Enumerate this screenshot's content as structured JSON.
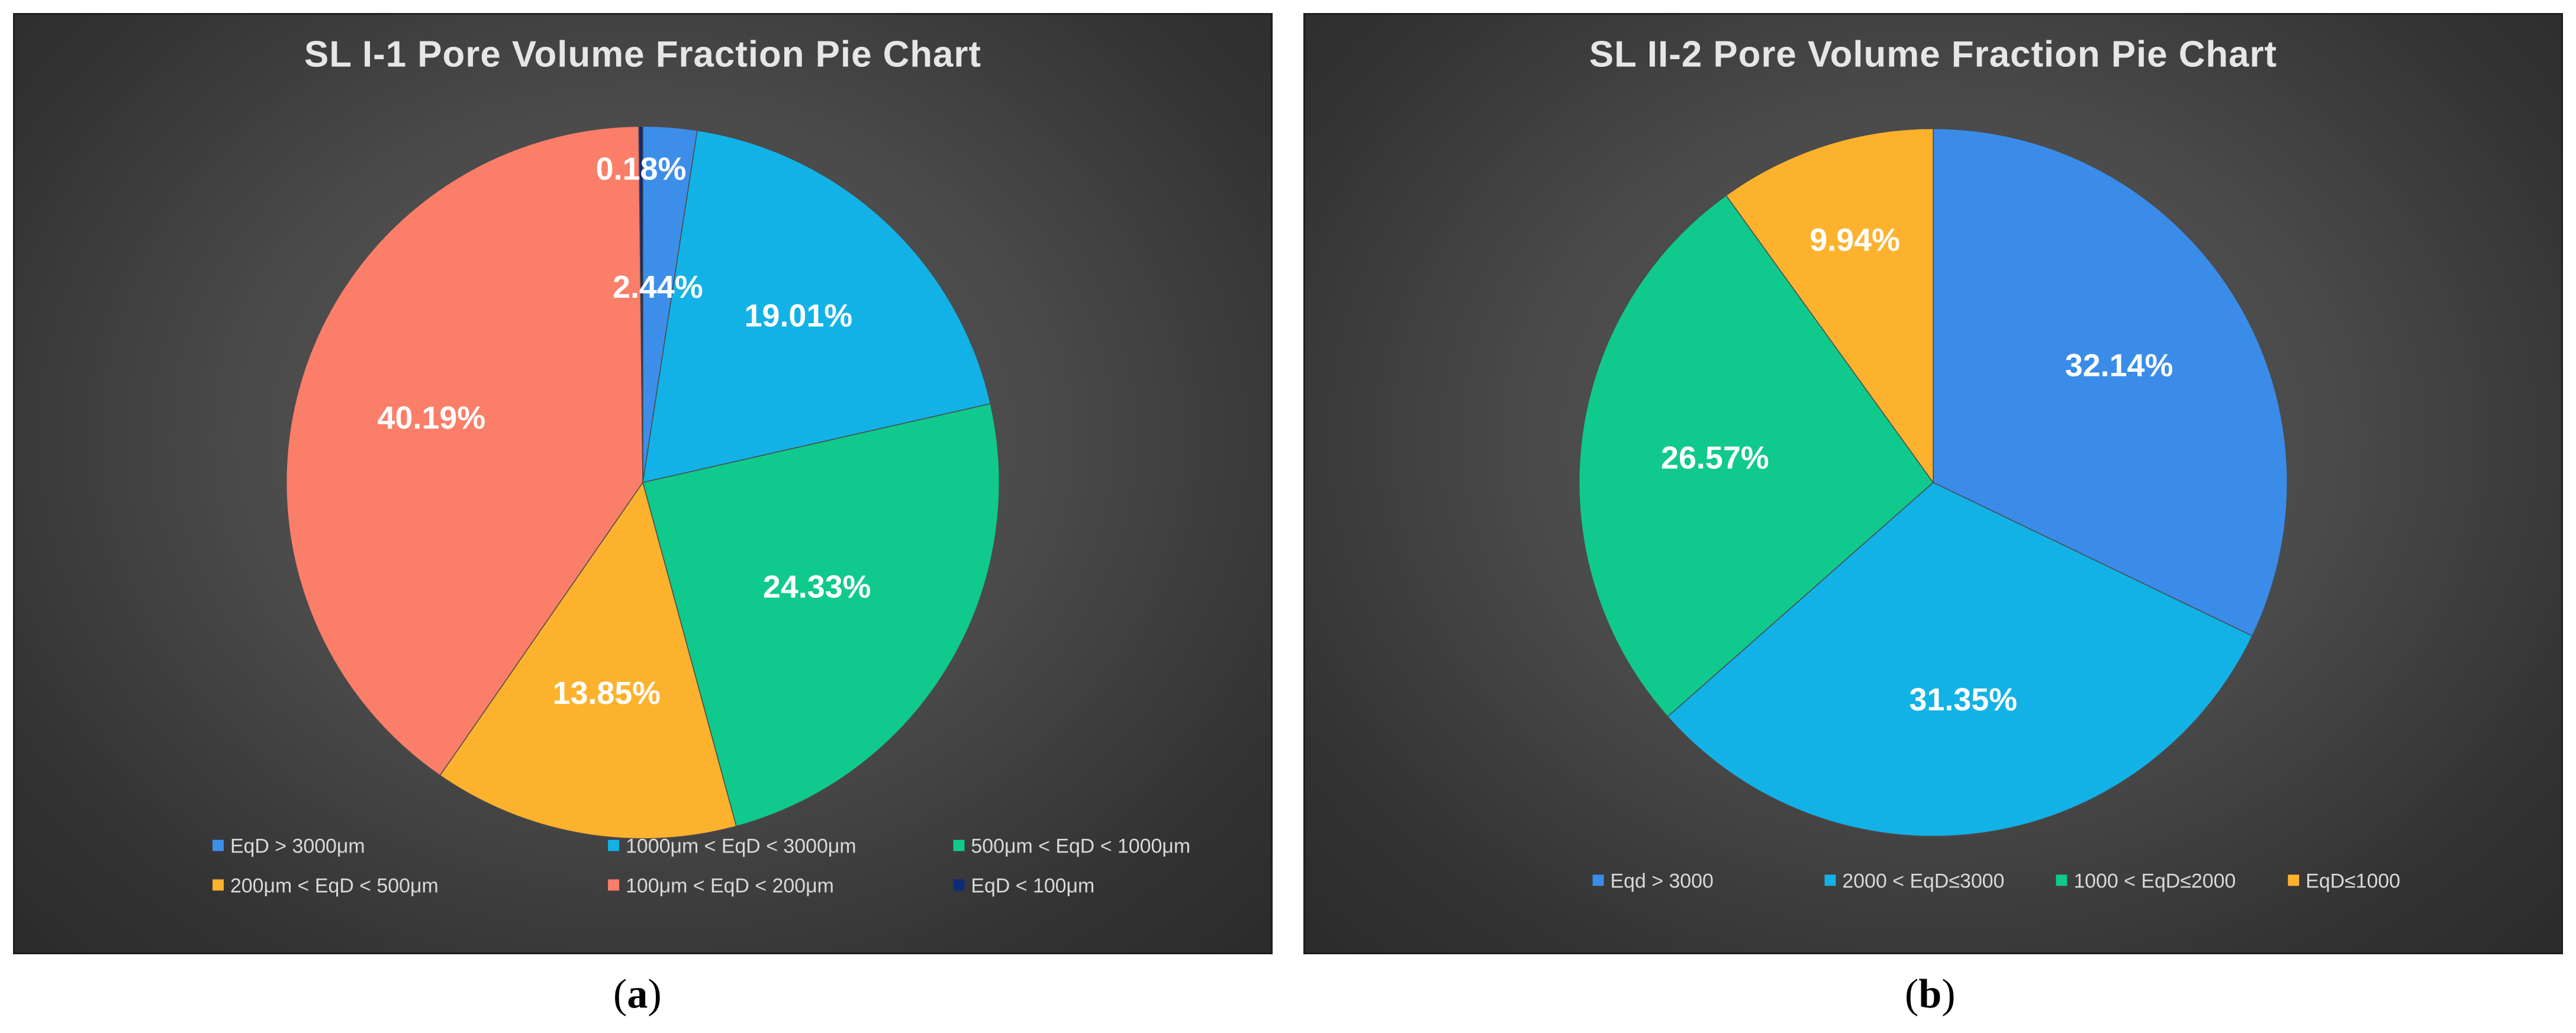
{
  "figure": {
    "caption_a": {
      "open": "(",
      "letter": "a",
      "close": ")"
    },
    "caption_b": {
      "open": "(",
      "letter": "b",
      "close": ")"
    }
  },
  "chart_data": [
    {
      "type": "pie",
      "title": "SL I-1 Pore Volume Fraction Pie Chart",
      "legend_position": "bottom",
      "slices": [
        {
          "name": "EqD > 3000μm",
          "value": 2.44,
          "label": "2.44%",
          "color": "#3d8ee8"
        },
        {
          "name": "1000μm < EqD < 3000μm",
          "value": 19.01,
          "label": "19.01%",
          "color": "#12b2e6"
        },
        {
          "name": "500μm < EqD < 1000μm",
          "value": 24.33,
          "label": "24.33%",
          "color": "#10c98c"
        },
        {
          "name": "200μm < EqD < 500μm",
          "value": 13.85,
          "label": "13.85%",
          "color": "#fdb22e"
        },
        {
          "name": "100μm < EqD < 200μm",
          "value": 40.19,
          "label": "40.19%",
          "color": "#fb7e69"
        },
        {
          "name": "EqD < 100μm",
          "value": 0.18,
          "label": "0.18%",
          "color": "#0d2c78"
        }
      ]
    },
    {
      "type": "pie",
      "title": "SL II-2 Pore Volume Fraction Pie Chart",
      "legend_position": "bottom",
      "slices": [
        {
          "name": "Eqd > 3000",
          "value": 32.14,
          "label": "32.14%",
          "color": "#3a8ce8"
        },
        {
          "name": "2000 < EqD≤3000",
          "value": 31.35,
          "label": "31.35%",
          "color": "#12b2e6"
        },
        {
          "name": "1000 < EqD≤2000",
          "value": 26.57,
          "label": "26.57%",
          "color": "#10c98c"
        },
        {
          "name": "EqD≤1000",
          "value": 9.94,
          "label": "9.94%",
          "color": "#fdb22e"
        }
      ]
    }
  ]
}
